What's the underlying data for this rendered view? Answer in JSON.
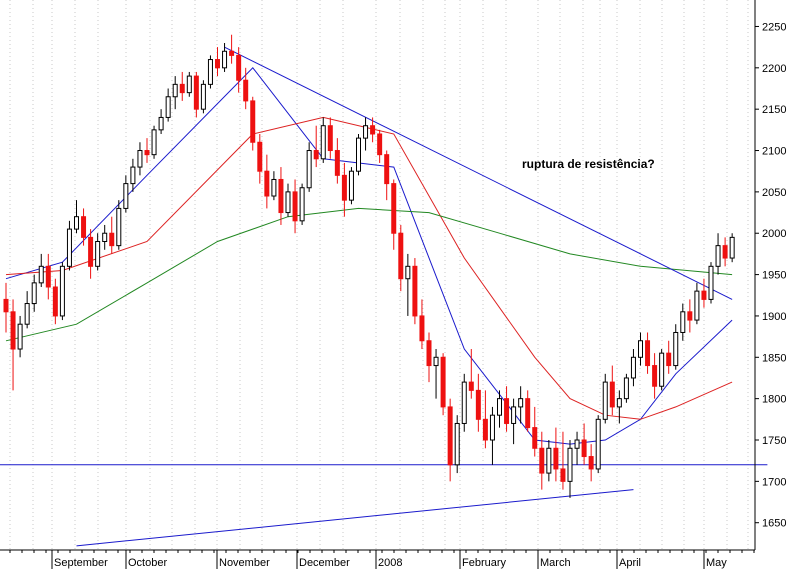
{
  "chart_data": {
    "type": "candlestick",
    "x_axis_labels": [
      "September",
      "October",
      "November",
      "December",
      "2008",
      "February",
      "March",
      "April",
      "May"
    ],
    "y_ticks": [
      1650,
      1700,
      1750,
      1800,
      1850,
      1900,
      1950,
      2000,
      2050,
      2100,
      2150,
      2200,
      2250
    ],
    "ylim": [
      1617,
      2282
    ],
    "grid": "vertical dotted",
    "annotation": "ruptura de resistência?",
    "colors": {
      "up_candle": "#ffffff",
      "down_candle": "#ee1111",
      "ma_short": "#1a1acc",
      "ma_mid": "#dd2222",
      "ma_long": "#228822",
      "trendline": "#1a1acc",
      "support": "#1a1acc"
    },
    "candles": [
      [
        1920,
        1940,
        1880,
        1905
      ],
      [
        1905,
        1920,
        1810,
        1860
      ],
      [
        1860,
        1900,
        1850,
        1890
      ],
      [
        1890,
        1930,
        1885,
        1915
      ],
      [
        1915,
        1950,
        1905,
        1940
      ],
      [
        1940,
        1975,
        1935,
        1960
      ],
      [
        1960,
        1975,
        1920,
        1935
      ],
      [
        1935,
        1945,
        1890,
        1900
      ],
      [
        1900,
        1965,
        1895,
        1960
      ],
      [
        1960,
        2015,
        1955,
        2005
      ],
      [
        2005,
        2040,
        2000,
        2020
      ],
      [
        2020,
        2030,
        1985,
        1995
      ],
      [
        1995,
        2005,
        1945,
        1960
      ],
      [
        1960,
        2000,
        1955,
        1990
      ],
      [
        1990,
        2010,
        1980,
        2000
      ],
      [
        2000,
        2020,
        1975,
        1985
      ],
      [
        1985,
        2040,
        1980,
        2030
      ],
      [
        2030,
        2070,
        2025,
        2060
      ],
      [
        2060,
        2090,
        2050,
        2080
      ],
      [
        2080,
        2110,
        2070,
        2100
      ],
      [
        2100,
        2115,
        2085,
        2095
      ],
      [
        2095,
        2130,
        2090,
        2125
      ],
      [
        2125,
        2150,
        2120,
        2140
      ],
      [
        2140,
        2175,
        2135,
        2165
      ],
      [
        2165,
        2190,
        2150,
        2180
      ],
      [
        2180,
        2195,
        2160,
        2170
      ],
      [
        2170,
        2195,
        2165,
        2190
      ],
      [
        2190,
        2195,
        2140,
        2150
      ],
      [
        2150,
        2185,
        2145,
        2180
      ],
      [
        2180,
        2215,
        2175,
        2210
      ],
      [
        2210,
        2225,
        2190,
        2200
      ],
      [
        2200,
        2230,
        2195,
        2220
      ],
      [
        2220,
        2240,
        2205,
        2215
      ],
      [
        2215,
        2225,
        2170,
        2185
      ],
      [
        2185,
        2200,
        2150,
        2160
      ],
      [
        2160,
        2165,
        2100,
        2110
      ],
      [
        2110,
        2120,
        2060,
        2075
      ],
      [
        2075,
        2095,
        2030,
        2045
      ],
      [
        2045,
        2075,
        2040,
        2065
      ],
      [
        2065,
        2080,
        2010,
        2025
      ],
      [
        2025,
        2060,
        2020,
        2050
      ],
      [
        2050,
        2065,
        2000,
        2015
      ],
      [
        2015,
        2060,
        2010,
        2055
      ],
      [
        2055,
        2110,
        2050,
        2100
      ],
      [
        2100,
        2130,
        2080,
        2090
      ],
      [
        2090,
        2140,
        2085,
        2130
      ],
      [
        2130,
        2140,
        2090,
        2100
      ],
      [
        2100,
        2115,
        2060,
        2070
      ],
      [
        2070,
        2085,
        2020,
        2040
      ],
      [
        2040,
        2080,
        2035,
        2075
      ],
      [
        2075,
        2120,
        2070,
        2115
      ],
      [
        2115,
        2140,
        2100,
        2130
      ],
      [
        2130,
        2140,
        2110,
        2120
      ],
      [
        2120,
        2125,
        2085,
        2095
      ],
      [
        2095,
        2100,
        2040,
        2060
      ],
      [
        2060,
        2065,
        1980,
        2000
      ],
      [
        2000,
        2010,
        1930,
        1945
      ],
      [
        1945,
        1975,
        1900,
        1960
      ],
      [
        1960,
        1970,
        1890,
        1900
      ],
      [
        1900,
        1920,
        1860,
        1870
      ],
      [
        1870,
        1880,
        1820,
        1840
      ],
      [
        1840,
        1860,
        1800,
        1850
      ],
      [
        1850,
        1855,
        1780,
        1790
      ],
      [
        1790,
        1800,
        1700,
        1720
      ],
      [
        1720,
        1780,
        1710,
        1770
      ],
      [
        1770,
        1830,
        1760,
        1820
      ],
      [
        1820,
        1860,
        1800,
        1810
      ],
      [
        1810,
        1830,
        1760,
        1775
      ],
      [
        1775,
        1810,
        1740,
        1750
      ],
      [
        1750,
        1790,
        1720,
        1780
      ],
      [
        1780,
        1810,
        1765,
        1800
      ],
      [
        1800,
        1815,
        1760,
        1770
      ],
      [
        1770,
        1800,
        1745,
        1790
      ],
      [
        1790,
        1815,
        1770,
        1800
      ],
      [
        1800,
        1810,
        1760,
        1765
      ],
      [
        1765,
        1790,
        1730,
        1740
      ],
      [
        1740,
        1760,
        1690,
        1710
      ],
      [
        1710,
        1750,
        1700,
        1740
      ],
      [
        1740,
        1765,
        1700,
        1715
      ],
      [
        1715,
        1760,
        1690,
        1700
      ],
      [
        1700,
        1750,
        1680,
        1740
      ],
      [
        1740,
        1760,
        1720,
        1750
      ],
      [
        1750,
        1770,
        1720,
        1730
      ],
      [
        1730,
        1745,
        1700,
        1715
      ],
      [
        1715,
        1780,
        1710,
        1775
      ],
      [
        1775,
        1830,
        1770,
        1820
      ],
      [
        1820,
        1840,
        1780,
        1790
      ],
      [
        1790,
        1810,
        1770,
        1800
      ],
      [
        1800,
        1830,
        1795,
        1825
      ],
      [
        1825,
        1860,
        1815,
        1850
      ],
      [
        1850,
        1880,
        1840,
        1870
      ],
      [
        1870,
        1880,
        1830,
        1840
      ],
      [
        1840,
        1855,
        1800,
        1815
      ],
      [
        1815,
        1860,
        1810,
        1855
      ],
      [
        1855,
        1870,
        1830,
        1840
      ],
      [
        1840,
        1890,
        1835,
        1880
      ],
      [
        1880,
        1915,
        1870,
        1905
      ],
      [
        1905,
        1920,
        1880,
        1895
      ],
      [
        1895,
        1940,
        1890,
        1930
      ],
      [
        1930,
        1945,
        1910,
        1920
      ],
      [
        1920,
        1965,
        1915,
        1960
      ],
      [
        1960,
        2000,
        1950,
        1985
      ],
      [
        1985,
        1995,
        1960,
        1970
      ],
      [
        1970,
        2000,
        1965,
        1995
      ]
    ],
    "moving_averages": [
      {
        "x": [
          0,
          8,
          20,
          35,
          45,
          55,
          65,
          75,
          80,
          85,
          90,
          95,
          103
        ],
        "values": [
          1945,
          1965,
          2070,
          2200,
          2090,
          2080,
          1860,
          1750,
          1745,
          1750,
          1775,
          1830,
          1895
        ]
      },
      {
        "x": [
          0,
          8,
          20,
          35,
          45,
          55,
          65,
          75,
          80,
          85,
          90,
          95,
          103
        ],
        "values": [
          1950,
          1955,
          1990,
          2120,
          2140,
          2120,
          1970,
          1850,
          1800,
          1780,
          1775,
          1790,
          1820
        ]
      },
      {
        "x": [
          0,
          10,
          20,
          30,
          40,
          50,
          60,
          70,
          80,
          90,
          103
        ],
        "values": [
          1870,
          1890,
          1940,
          1990,
          2020,
          2030,
          2025,
          2000,
          1975,
          1960,
          1950
        ]
      }
    ],
    "trendlines": [
      {
        "x": [
          31,
          103
        ],
        "values": [
          2225,
          1920
        ]
      },
      {
        "x": [
          -10,
          108
        ],
        "values": [
          1720,
          1720
        ]
      },
      {
        "x": [
          10,
          89
        ],
        "values": [
          1622,
          1690
        ]
      }
    ]
  }
}
